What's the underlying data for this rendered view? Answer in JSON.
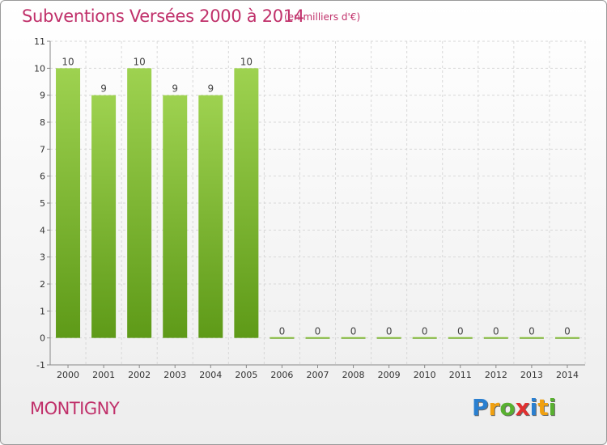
{
  "title": "Subventions Versées 2000 à 2014",
  "unit_note": "(en milliers d'€)",
  "footer_label": "MONTIGNY",
  "logo": {
    "letters": [
      {
        "ch": "P",
        "color": "#2a7fd0"
      },
      {
        "ch": "r",
        "color": "#f0a010"
      },
      {
        "ch": "o",
        "color": "#58b030"
      },
      {
        "ch": "x",
        "color": "#e03030"
      },
      {
        "ch": "i",
        "color": "#2a7fd0"
      },
      {
        "ch": "t",
        "color": "#f0a010"
      },
      {
        "ch": "i",
        "color": "#58b030"
      }
    ]
  },
  "colors": {
    "title": "#c0306a",
    "bar_top": "#9ed250",
    "bar_bottom": "#5e9a18",
    "grid": "#d8d8d8",
    "axis": "#888888"
  },
  "chart_data": {
    "type": "bar",
    "categories": [
      "2000",
      "2001",
      "2002",
      "2003",
      "2004",
      "2005",
      "2006",
      "2007",
      "2008",
      "2009",
      "2010",
      "2011",
      "2012",
      "2013",
      "2014"
    ],
    "values": [
      10,
      9,
      10,
      9,
      9,
      10,
      0,
      0,
      0,
      0,
      0,
      0,
      0,
      0,
      0
    ],
    "data_labels": [
      "10",
      "9",
      "10",
      "9",
      "9",
      "10",
      "0",
      "0",
      "0",
      "0",
      "0",
      "0",
      "0",
      "0",
      "0"
    ],
    "ylim": [
      -1,
      11
    ],
    "yticks": [
      -1,
      0,
      1,
      2,
      3,
      4,
      5,
      6,
      7,
      8,
      9,
      10,
      11
    ],
    "ytick_labels": [
      "-1",
      "0",
      "1",
      "2",
      "3",
      "4",
      "5",
      "6",
      "7",
      "8",
      "9",
      "10",
      "11"
    ],
    "grid": true,
    "xlabel": "",
    "ylabel": ""
  }
}
